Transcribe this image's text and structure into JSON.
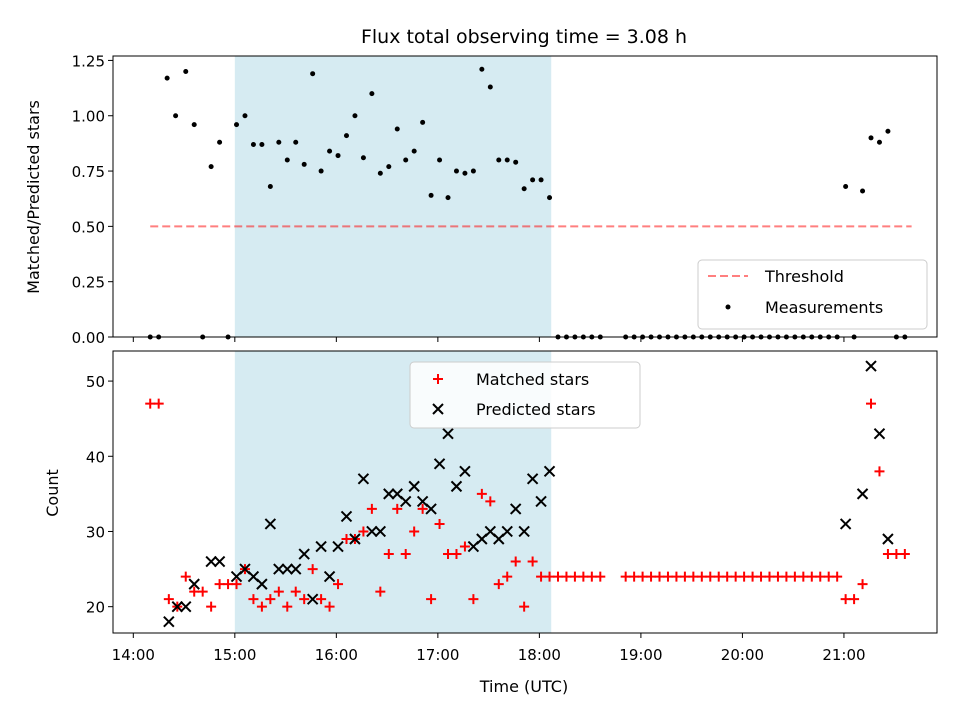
{
  "figure": {
    "title": "Flux total observing time = 3.08 h",
    "xlabel": "Time (UTC)",
    "x_ticks": [
      "14:00",
      "15:00",
      "16:00",
      "17:00",
      "18:00",
      "19:00",
      "20:00",
      "21:00"
    ],
    "shaded_interval": [
      "15:00",
      "18:07"
    ],
    "colors": {
      "shade": "#add8e6",
      "threshold": "#ff0000",
      "matched": "#ff0000",
      "predicted": "#000000",
      "measurements": "#000000"
    }
  },
  "chart_data": [
    {
      "type": "scatter",
      "ylabel": "Matched/Predicted stars",
      "ylim": [
        0,
        1.27
      ],
      "y_ticks": [
        "0.00",
        "0.25",
        "0.50",
        "0.75",
        "1.00",
        "1.25"
      ],
      "legend": {
        "placement": "lower-right",
        "entries": [
          "Threshold",
          "Measurements"
        ]
      },
      "threshold": {
        "name": "Threshold",
        "value": 0.5,
        "x_start": "14:10",
        "x_end": "21:40",
        "style": "dashed"
      },
      "series": [
        {
          "name": "Measurements",
          "points": [
            [
              "14:10",
              0
            ],
            [
              "14:15",
              0
            ],
            [
              "14:20",
              1.17
            ],
            [
              "14:25",
              1.0
            ],
            [
              "14:31",
              1.2
            ],
            [
              "14:36",
              0.96
            ],
            [
              "14:41",
              0
            ],
            [
              "14:46",
              0.77
            ],
            [
              "14:51",
              0.88
            ],
            [
              "14:56",
              0
            ],
            [
              "15:01",
              0.96
            ],
            [
              "15:06",
              1.0
            ],
            [
              "15:11",
              0.87
            ],
            [
              "15:16",
              0.87
            ],
            [
              "15:21",
              0.68
            ],
            [
              "15:26",
              0.88
            ],
            [
              "15:31",
              0.8
            ],
            [
              "15:36",
              0.88
            ],
            [
              "15:41",
              0.78
            ],
            [
              "15:46",
              1.19
            ],
            [
              "15:51",
              0.75
            ],
            [
              "15:56",
              0.84
            ],
            [
              "16:01",
              0.82
            ],
            [
              "16:06",
              0.91
            ],
            [
              "16:11",
              1.0
            ],
            [
              "16:16",
              0.81
            ],
            [
              "16:21",
              1.1
            ],
            [
              "16:26",
              0.74
            ],
            [
              "16:31",
              0.77
            ],
            [
              "16:36",
              0.94
            ],
            [
              "16:41",
              0.8
            ],
            [
              "16:46",
              0.84
            ],
            [
              "16:51",
              0.97
            ],
            [
              "16:56",
              0.64
            ],
            [
              "17:01",
              0.8
            ],
            [
              "17:06",
              0.63
            ],
            [
              "17:11",
              0.75
            ],
            [
              "17:16",
              0.74
            ],
            [
              "17:21",
              0.75
            ],
            [
              "17:26",
              1.21
            ],
            [
              "17:31",
              1.13
            ],
            [
              "17:36",
              0.8
            ],
            [
              "17:41",
              0.8
            ],
            [
              "17:46",
              0.79
            ],
            [
              "17:51",
              0.67
            ],
            [
              "17:56",
              0.71
            ],
            [
              "18:01",
              0.71
            ],
            [
              "18:06",
              0.63
            ],
            [
              "18:11",
              0
            ],
            [
              "18:16",
              0
            ],
            [
              "18:21",
              0
            ],
            [
              "18:26",
              0
            ],
            [
              "18:31",
              0
            ],
            [
              "18:36",
              0
            ],
            [
              "18:51",
              0
            ],
            [
              "18:56",
              0
            ],
            [
              "19:01",
              0
            ],
            [
              "19:06",
              0
            ],
            [
              "19:11",
              0
            ],
            [
              "19:16",
              0
            ],
            [
              "19:21",
              0
            ],
            [
              "19:26",
              0
            ],
            [
              "19:31",
              0
            ],
            [
              "19:36",
              0
            ],
            [
              "19:41",
              0
            ],
            [
              "19:46",
              0
            ],
            [
              "19:51",
              0
            ],
            [
              "19:56",
              0
            ],
            [
              "20:01",
              0
            ],
            [
              "20:06",
              0
            ],
            [
              "20:11",
              0
            ],
            [
              "20:16",
              0
            ],
            [
              "20:21",
              0
            ],
            [
              "20:26",
              0
            ],
            [
              "20:31",
              0
            ],
            [
              "20:36",
              0
            ],
            [
              "20:41",
              0
            ],
            [
              "20:46",
              0
            ],
            [
              "20:51",
              0
            ],
            [
              "20:56",
              0
            ],
            [
              "21:01",
              0.68
            ],
            [
              "21:06",
              0
            ],
            [
              "21:11",
              0.66
            ],
            [
              "21:16",
              0.9
            ],
            [
              "21:21",
              0.88
            ],
            [
              "21:26",
              0.93
            ],
            [
              "21:31",
              0
            ],
            [
              "21:36",
              0
            ]
          ]
        }
      ]
    },
    {
      "type": "scatter",
      "ylabel": "Count",
      "ylim": [
        16.5,
        54
      ],
      "y_ticks": [
        "20",
        "30",
        "40",
        "50"
      ],
      "legend": {
        "placement": "top-center",
        "entries": [
          "Matched stars",
          "Predicted stars"
        ]
      },
      "series": [
        {
          "name": "Matched stars",
          "marker": "plus",
          "points": [
            [
              "14:10",
              47
            ],
            [
              "14:15",
              47
            ],
            [
              "14:21",
              21
            ],
            [
              "14:26",
              20
            ],
            [
              "14:31",
              24
            ],
            [
              "14:36",
              22
            ],
            [
              "14:41",
              22
            ],
            [
              "14:46",
              20
            ],
            [
              "14:51",
              23
            ],
            [
              "14:56",
              23
            ],
            [
              "15:01",
              23
            ],
            [
              "15:06",
              25
            ],
            [
              "15:11",
              21
            ],
            [
              "15:16",
              20
            ],
            [
              "15:21",
              21
            ],
            [
              "15:26",
              22
            ],
            [
              "15:31",
              20
            ],
            [
              "15:36",
              22
            ],
            [
              "15:41",
              21
            ],
            [
              "15:46",
              25
            ],
            [
              "15:51",
              21
            ],
            [
              "15:56",
              20
            ],
            [
              "16:01",
              23
            ],
            [
              "16:06",
              29
            ],
            [
              "16:11",
              29
            ],
            [
              "16:16",
              30
            ],
            [
              "16:21",
              33
            ],
            [
              "16:26",
              22
            ],
            [
              "16:31",
              27
            ],
            [
              "16:36",
              33
            ],
            [
              "16:41",
              27
            ],
            [
              "16:46",
              30
            ],
            [
              "16:51",
              33
            ],
            [
              "16:56",
              21
            ],
            [
              "17:01",
              31
            ],
            [
              "17:06",
              27
            ],
            [
              "17:11",
              27
            ],
            [
              "17:16",
              28
            ],
            [
              "17:21",
              21
            ],
            [
              "17:26",
              35
            ],
            [
              "17:31",
              34
            ],
            [
              "17:36",
              23
            ],
            [
              "17:41",
              24
            ],
            [
              "17:46",
              26
            ],
            [
              "17:51",
              20
            ],
            [
              "17:56",
              26
            ],
            [
              "18:01",
              24
            ],
            [
              "18:06",
              24
            ],
            [
              "18:11",
              24
            ],
            [
              "18:16",
              24
            ],
            [
              "18:21",
              24
            ],
            [
              "18:26",
              24
            ],
            [
              "18:31",
              24
            ],
            [
              "18:36",
              24
            ],
            [
              "18:51",
              24
            ],
            [
              "18:56",
              24
            ],
            [
              "19:01",
              24
            ],
            [
              "19:06",
              24
            ],
            [
              "19:11",
              24
            ],
            [
              "19:16",
              24
            ],
            [
              "19:21",
              24
            ],
            [
              "19:26",
              24
            ],
            [
              "19:31",
              24
            ],
            [
              "19:36",
              24
            ],
            [
              "19:41",
              24
            ],
            [
              "19:46",
              24
            ],
            [
              "19:51",
              24
            ],
            [
              "19:56",
              24
            ],
            [
              "20:01",
              24
            ],
            [
              "20:06",
              24
            ],
            [
              "20:11",
              24
            ],
            [
              "20:16",
              24
            ],
            [
              "20:21",
              24
            ],
            [
              "20:26",
              24
            ],
            [
              "20:31",
              24
            ],
            [
              "20:36",
              24
            ],
            [
              "20:41",
              24
            ],
            [
              "20:46",
              24
            ],
            [
              "20:51",
              24
            ],
            [
              "20:56",
              24
            ],
            [
              "21:01",
              21
            ],
            [
              "21:06",
              21
            ],
            [
              "21:11",
              23
            ],
            [
              "21:16",
              47
            ],
            [
              "21:21",
              38
            ],
            [
              "21:26",
              27
            ],
            [
              "21:31",
              27
            ],
            [
              "21:36",
              27
            ]
          ]
        },
        {
          "name": "Predicted stars",
          "marker": "x",
          "points": [
            [
              "14:21",
              18
            ],
            [
              "14:26",
              20
            ],
            [
              "14:31",
              20
            ],
            [
              "14:36",
              23
            ],
            [
              "14:46",
              26
            ],
            [
              "14:51",
              26
            ],
            [
              "15:01",
              24
            ],
            [
              "15:06",
              25
            ],
            [
              "15:11",
              24
            ],
            [
              "15:16",
              23
            ],
            [
              "15:21",
              31
            ],
            [
              "15:26",
              25
            ],
            [
              "15:31",
              25
            ],
            [
              "15:36",
              25
            ],
            [
              "15:41",
              27
            ],
            [
              "15:46",
              21
            ],
            [
              "15:51",
              28
            ],
            [
              "15:56",
              24
            ],
            [
              "16:01",
              28
            ],
            [
              "16:06",
              32
            ],
            [
              "16:11",
              29
            ],
            [
              "16:16",
              37
            ],
            [
              "16:21",
              30
            ],
            [
              "16:26",
              30
            ],
            [
              "16:31",
              35
            ],
            [
              "16:36",
              35
            ],
            [
              "16:41",
              34
            ],
            [
              "16:46",
              36
            ],
            [
              "16:51",
              34
            ],
            [
              "16:56",
              33
            ],
            [
              "17:01",
              39
            ],
            [
              "17:06",
              43
            ],
            [
              "17:11",
              36
            ],
            [
              "17:16",
              38
            ],
            [
              "17:21",
              28
            ],
            [
              "17:26",
              29
            ],
            [
              "17:31",
              30
            ],
            [
              "17:36",
              29
            ],
            [
              "17:41",
              30
            ],
            [
              "17:46",
              33
            ],
            [
              "17:51",
              30
            ],
            [
              "17:56",
              37
            ],
            [
              "18:01",
              34
            ],
            [
              "18:06",
              38
            ],
            [
              "21:01",
              31
            ],
            [
              "21:11",
              35
            ],
            [
              "21:16",
              52
            ],
            [
              "21:21",
              43
            ],
            [
              "21:26",
              29
            ]
          ]
        }
      ]
    }
  ]
}
